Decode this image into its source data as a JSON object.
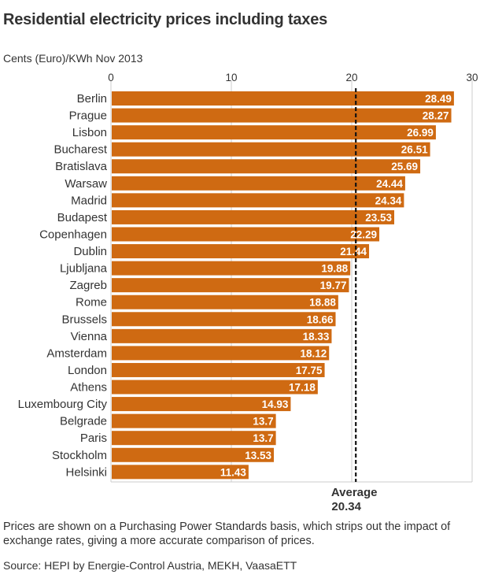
{
  "title": "Residential electricity prices including taxes",
  "units": "Cents (Euro)/KWh Nov 2013",
  "note": "Prices are shown on a Purchasing Power Standards basis, which strips out the impact of exchange rates, giving a more accurate comparison of prices.",
  "source": "Source: HEPI by Energie-Control Austria, MEKH, VaasaETT",
  "colors": {
    "bar": "#cf6a12",
    "label": "#ffffff",
    "grid": "#cccccc",
    "average": "#111111"
  },
  "chart_data": {
    "type": "bar",
    "orientation": "horizontal",
    "categories": [
      "Berlin",
      "Prague",
      "Lisbon",
      "Bucharest",
      "Bratislava",
      "Warsaw",
      "Madrid",
      "Budapest",
      "Copenhagen",
      "Dublin",
      "Ljubljana",
      "Zagreb",
      "Rome",
      "Brussels",
      "Vienna",
      "Amsterdam",
      "London",
      "Athens",
      "Luxembourg City",
      "Belgrade",
      "Paris",
      "Stockholm",
      "Helsinki"
    ],
    "values": [
      28.49,
      28.27,
      26.99,
      26.51,
      25.69,
      24.44,
      24.34,
      23.53,
      22.29,
      21.44,
      19.88,
      19.77,
      18.88,
      18.66,
      18.33,
      18.12,
      17.75,
      17.18,
      14.93,
      13.7,
      13.7,
      13.53,
      11.43
    ],
    "value_labels": [
      "28.49",
      "28.27",
      "26.99",
      "26.51",
      "25.69",
      "24.44",
      "24.34",
      "23.53",
      "22.29",
      "21.44",
      "19.88",
      "19.77",
      "18.88",
      "18.66",
      "18.33",
      "18.12",
      "17.75",
      "17.18",
      "14.93",
      "13.7",
      "13.7",
      "13.53",
      "11.43"
    ],
    "xlim": [
      0,
      30
    ],
    "xticks": [
      0,
      10,
      20,
      30
    ],
    "xtick_labels": [
      "0",
      "10",
      "20",
      "30"
    ],
    "grid": true,
    "average": {
      "value": 20.34,
      "label": "Average",
      "value_label": "20.34"
    }
  }
}
